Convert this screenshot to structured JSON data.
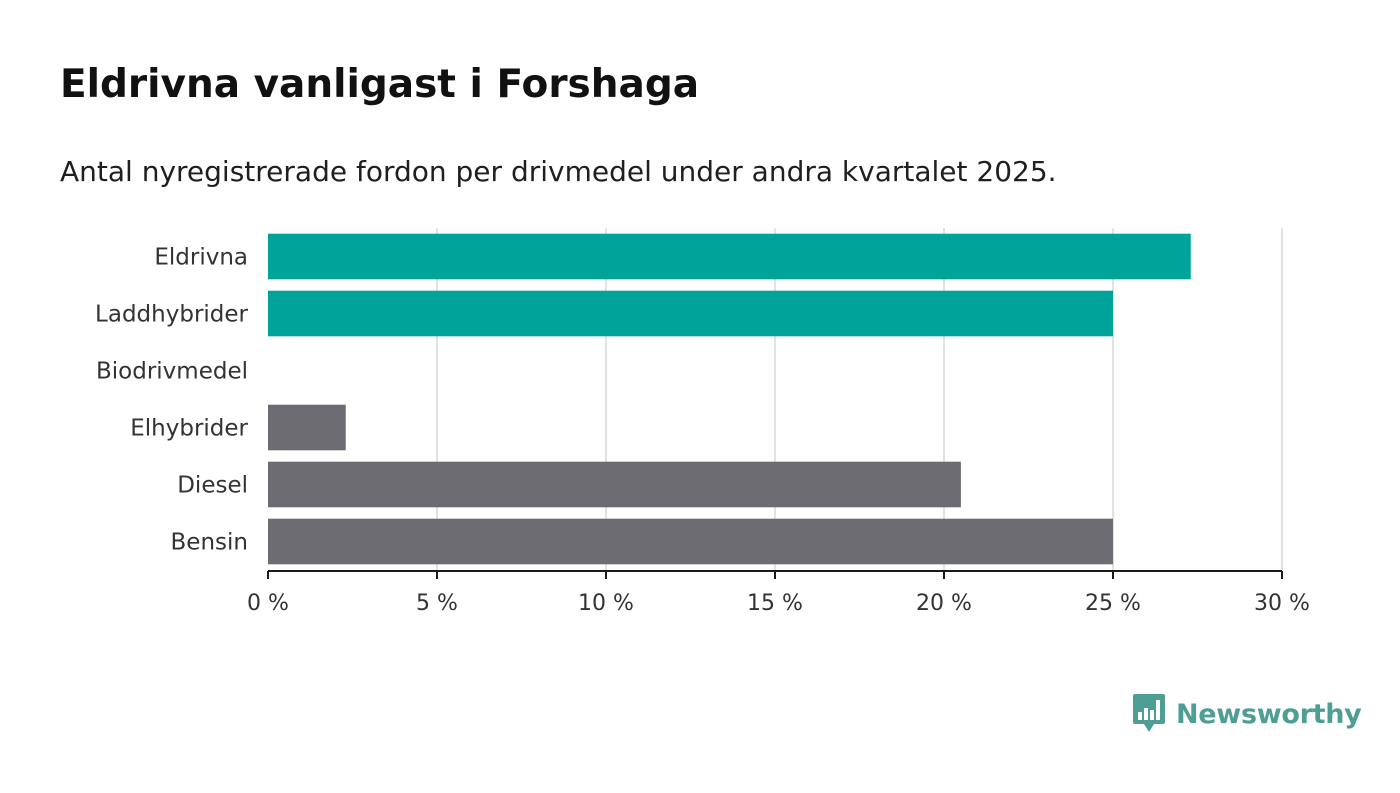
{
  "title": "Eldrivna vanligast i Forshaga",
  "subtitle": "Antal nyregistrerade fordon per drivmedel under andra kvartalet 2025.",
  "brand": {
    "name": "Newsworthy",
    "color": "#4e9e96",
    "icon": "newsworthy-chart-bubble-icon"
  },
  "chart_data": {
    "type": "bar",
    "orientation": "horizontal",
    "categories": [
      "Eldrivna",
      "Laddhybrider",
      "Biodrivmedel",
      "Elhybrider",
      "Diesel",
      "Bensin"
    ],
    "values": [
      27.3,
      25.0,
      0,
      2.3,
      20.5,
      25.0
    ],
    "colors": [
      "#00a39a",
      "#00a39a",
      "#00a39a",
      "#6d6c73",
      "#6d6c73",
      "#6d6c73"
    ],
    "xlim": [
      0,
      30
    ],
    "xticks": [
      0,
      5,
      10,
      15,
      20,
      25,
      30
    ],
    "xtick_labels": [
      "0 %",
      "5 %",
      "10 %",
      "15 %",
      "20 %",
      "25 %",
      "30 %"
    ],
    "grid": true
  }
}
